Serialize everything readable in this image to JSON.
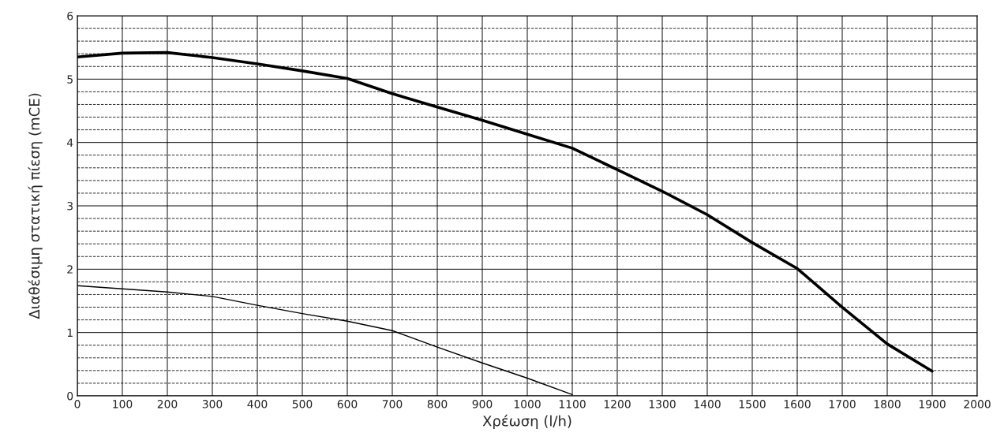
{
  "chart_data": {
    "type": "line",
    "xlabel": "Χρέωση (l/h)",
    "ylabel": "Διαθέσιμη στατική πίεση (mCE)",
    "series": [
      {
        "color": "#000000",
        "x": [
          0,
          100,
          200,
          300,
          400,
          500,
          600,
          700,
          800,
          900,
          1000,
          1100,
          1200,
          1300,
          1400,
          1500,
          1600,
          1700,
          1800,
          1900
        ],
        "values": [
          5.35,
          5.41,
          5.42,
          5.34,
          5.24,
          5.13,
          5.01,
          4.77,
          4.56,
          4.35,
          4.13,
          3.91,
          3.57,
          3.23,
          2.86,
          2.42,
          2.01,
          1.4,
          0.82,
          0.39
        ]
      },
      {
        "color": "#000000",
        "x": [
          0,
          100,
          200,
          300,
          400,
          500,
          600,
          700,
          800,
          900,
          1000,
          1100
        ],
        "values": [
          1.74,
          1.69,
          1.64,
          1.57,
          1.43,
          1.3,
          1.18,
          1.03,
          0.77,
          0.52,
          0.28,
          0.02
        ]
      }
    ],
    "xlim": [
      0,
      2000
    ],
    "ylim": [
      0,
      6
    ],
    "xticks": [
      0,
      100,
      200,
      300,
      400,
      500,
      600,
      700,
      800,
      900,
      1000,
      1100,
      1200,
      1300,
      1400,
      1500,
      1600,
      1700,
      1800,
      1900,
      2000
    ],
    "yticks": [
      0,
      {
        "value": 0.2,
        "label": null
      },
      {
        "value": 0.4,
        "label": null
      },
      {
        "value": 0.6,
        "label": null
      },
      {
        "value": 0.8,
        "label": null
      },
      1,
      {
        "value": 1.2,
        "label": null
      },
      {
        "value": 1.4,
        "label": null
      },
      {
        "value": 1.6,
        "label": null
      },
      {
        "value": 1.8,
        "label": null
      },
      2,
      {
        "value": 2.2,
        "label": null
      },
      {
        "value": 2.4,
        "label": null
      },
      {
        "value": 2.6,
        "label": null
      },
      {
        "value": 2.8,
        "label": null
      },
      3,
      {
        "value": 3.2,
        "label": null
      },
      {
        "value": 3.4,
        "label": null
      },
      {
        "value": 3.6,
        "label": null
      },
      {
        "value": 3.8,
        "label": null
      },
      4,
      {
        "value": 4.2,
        "label": null
      },
      {
        "value": 4.4,
        "label": null
      },
      {
        "value": 4.6,
        "label": null
      },
      {
        "value": 4.8,
        "label": null
      },
      5,
      {
        "value": 5.2,
        "label": null
      },
      {
        "value": 5.4,
        "label": null
      },
      {
        "value": 5.6,
        "label": null
      },
      {
        "value": 5.8,
        "label": null
      },
      6
    ],
    "grid": true,
    "marker": "none",
    "line_style": "solid"
  }
}
